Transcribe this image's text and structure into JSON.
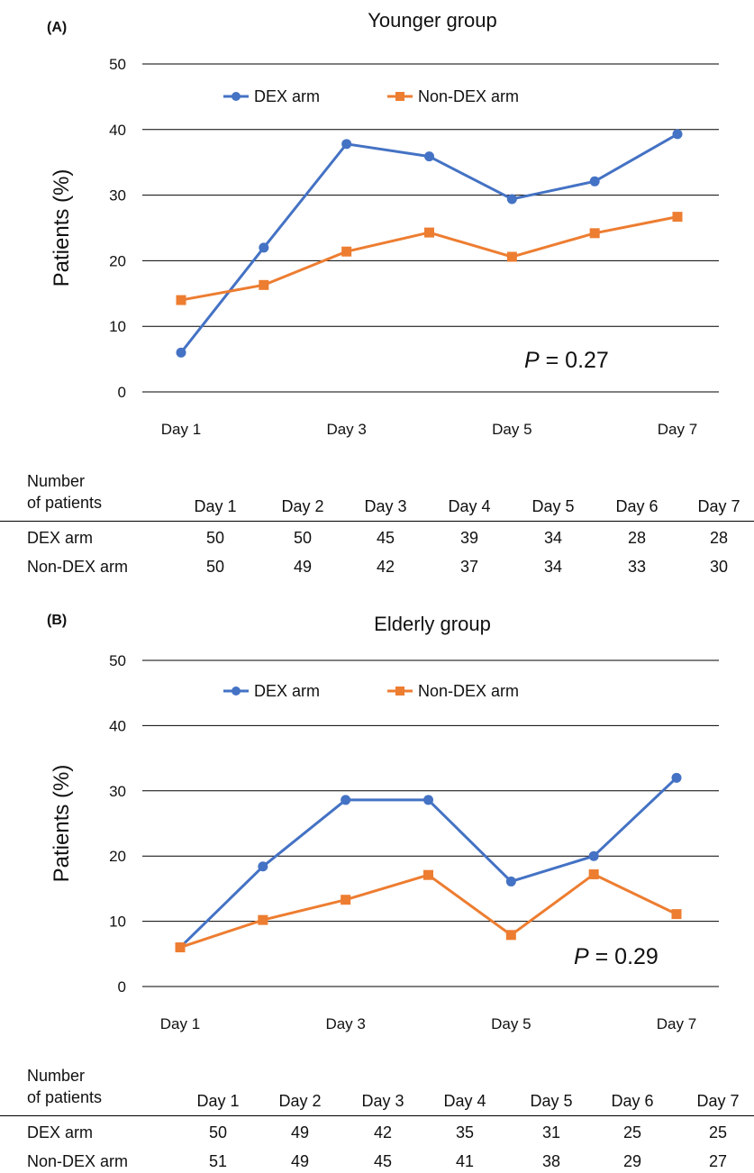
{
  "chart_data": [
    {
      "type": "line",
      "panel": "(A)",
      "title": "Younger group",
      "ylabel": "Patients (%)",
      "xlabel": "",
      "x": [
        "Day 1",
        "Day 2",
        "Day 3",
        "Day 4",
        "Day 5",
        "Day 6",
        "Day 7"
      ],
      "x_tick_labels": [
        "Day 1",
        "Day 3",
        "Day 5",
        "Day 7"
      ],
      "y_ticks": [
        0,
        10,
        20,
        30,
        40,
        50
      ],
      "ylim": [
        0,
        50
      ],
      "grid": "horizontal",
      "legend_position": "top",
      "annotation": {
        "italic": "P",
        "text": " = 0.27"
      },
      "series": [
        {
          "name": "DEX arm",
          "color": "#4472C4",
          "marker": "circle",
          "values": [
            6,
            22,
            37.8,
            35.9,
            29.4,
            32.1,
            39.3
          ]
        },
        {
          "name": "Non-DEX arm",
          "color": "#ED7D31",
          "marker": "square",
          "values": [
            14,
            16.3,
            21.4,
            24.3,
            20.6,
            24.2,
            26.7
          ]
        }
      ]
    },
    {
      "type": "line",
      "panel": "(B)",
      "title": "Elderly group",
      "ylabel": "Patients (%)",
      "xlabel": "",
      "x": [
        "Day 1",
        "Day 2",
        "Day 3",
        "Day 4",
        "Day 5",
        "Day 6",
        "Day 7"
      ],
      "x_tick_labels": [
        "Day 1",
        "Day 3",
        "Day 5",
        "Day 7"
      ],
      "y_ticks": [
        0,
        10,
        20,
        30,
        40,
        50
      ],
      "ylim": [
        0,
        50
      ],
      "grid": "horizontal",
      "legend_position": "top",
      "annotation": {
        "italic": "P",
        "text": " = 0.29"
      },
      "series": [
        {
          "name": "DEX arm",
          "color": "#4472C4",
          "marker": "circle",
          "values": [
            6,
            18.4,
            28.6,
            28.6,
            16.1,
            20,
            32
          ]
        },
        {
          "name": "Non-DEX arm",
          "color": "#ED7D31",
          "marker": "square",
          "values": [
            6,
            10.2,
            13.3,
            17.1,
            7.9,
            17.2,
            11.1
          ]
        }
      ]
    }
  ],
  "tables": [
    {
      "head_line1": "Number",
      "head_line2": "of patients",
      "columns": [
        "Day 1",
        "Day 2",
        "Day 3",
        "Day 4",
        "Day 5",
        "Day 6",
        "Day 7"
      ],
      "rows": [
        {
          "label": "DEX arm",
          "values": [
            "50",
            "50",
            "45",
            "39",
            "34",
            "28",
            "28"
          ]
        },
        {
          "label": "Non-DEX arm",
          "values": [
            "50",
            "49",
            "42",
            "37",
            "34",
            "33",
            "30"
          ]
        }
      ]
    },
    {
      "head_line1": "Number",
      "head_line2": "of patients",
      "columns": [
        "Day 1",
        "Day 2",
        "Day 3",
        "Day 4",
        "Day 5",
        "Day 6",
        "Day 7"
      ],
      "rows": [
        {
          "label": "DEX arm",
          "values": [
            "50",
            "49",
            "42",
            "35",
            "31",
            "25",
            "25"
          ]
        },
        {
          "label": "Non-DEX arm",
          "values": [
            "51",
            "49",
            "45",
            "41",
            "38",
            "29",
            "27"
          ]
        }
      ]
    }
  ]
}
